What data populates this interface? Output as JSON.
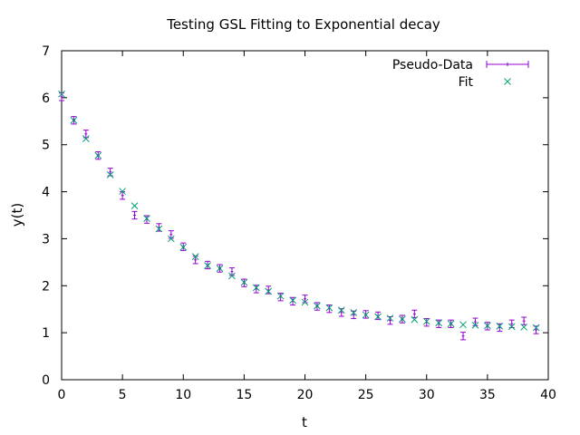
{
  "chart_data": {
    "type": "scatter",
    "title": "Testing GSL Fitting to Exponential decay",
    "xlabel": "t",
    "ylabel": "y(t)",
    "xlim": [
      0,
      40
    ],
    "ylim": [
      0,
      7
    ],
    "xticks": [
      0,
      5,
      10,
      15,
      20,
      25,
      30,
      35,
      40
    ],
    "yticks": [
      0,
      1,
      2,
      3,
      4,
      5,
      6,
      7
    ],
    "grid": false,
    "legend_position": "top-right",
    "series": [
      {
        "name": "Pseudo-Data",
        "marker": "errorbar",
        "color": "#9400d3",
        "x": [
          0,
          1,
          2,
          3,
          4,
          5,
          6,
          7,
          8,
          9,
          10,
          11,
          12,
          13,
          14,
          15,
          16,
          17,
          18,
          19,
          20,
          21,
          22,
          23,
          24,
          25,
          26,
          27,
          28,
          29,
          30,
          31,
          32,
          33,
          34,
          35,
          36,
          37,
          38,
          39
        ],
        "y": [
          6.02,
          5.52,
          5.23,
          4.77,
          4.42,
          3.92,
          3.5,
          3.41,
          3.24,
          3.09,
          2.83,
          2.55,
          2.44,
          2.37,
          2.3,
          2.06,
          1.93,
          1.91,
          1.76,
          1.67,
          1.72,
          1.56,
          1.51,
          1.43,
          1.38,
          1.39,
          1.36,
          1.26,
          1.29,
          1.4,
          1.22,
          1.19,
          1.19,
          0.93,
          1.23,
          1.14,
          1.11,
          1.19,
          1.25,
          1.06
        ],
        "err": 0.08
      },
      {
        "name": "Fit",
        "marker": "x",
        "color": "#009e73",
        "x": [
          0,
          1,
          2,
          3,
          4,
          5,
          6,
          7,
          8,
          9,
          10,
          11,
          12,
          13,
          14,
          15,
          16,
          17,
          18,
          19,
          20,
          21,
          22,
          23,
          24,
          25,
          26,
          27,
          28,
          29,
          30,
          31,
          32,
          33,
          34,
          35,
          36,
          37,
          38,
          39
        ],
        "y": [
          6.08,
          5.52,
          5.13,
          4.77,
          4.36,
          4.01,
          3.7,
          3.43,
          3.21,
          3.0,
          2.82,
          2.62,
          2.43,
          2.37,
          2.21,
          2.07,
          1.96,
          1.88,
          1.78,
          1.69,
          1.65,
          1.57,
          1.53,
          1.48,
          1.43,
          1.38,
          1.34,
          1.31,
          1.29,
          1.28,
          1.24,
          1.21,
          1.19,
          1.17,
          1.16,
          1.15,
          1.14,
          1.13,
          1.12,
          1.11
        ]
      }
    ]
  }
}
